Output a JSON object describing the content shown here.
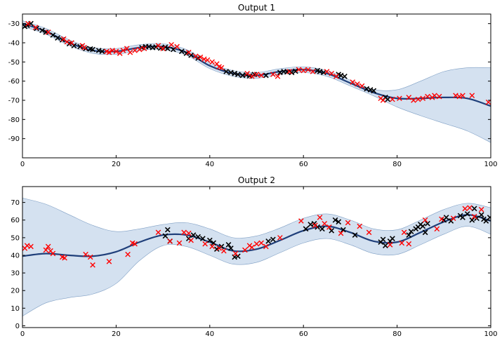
{
  "chart_data": [
    {
      "type": "scatter",
      "title": "Output 1",
      "xlabel": "",
      "ylabel": "",
      "xlim": [
        0,
        100
      ],
      "ylim": [
        -100,
        -25
      ],
      "xticks": [
        0,
        20,
        40,
        60,
        80,
        100
      ],
      "yticks": [
        -90,
        -80,
        -70,
        -60,
        -50,
        -40,
        -30
      ],
      "grid": false,
      "colors": {
        "mean": "#1f3f7a",
        "band": "#c9d9ec",
        "train": "#000000",
        "test": "#ff0000"
      },
      "mean": {
        "x": [
          0,
          5,
          10,
          15,
          20,
          25,
          30,
          35,
          40,
          45,
          50,
          55,
          60,
          65,
          70,
          75,
          80,
          85,
          90,
          95,
          100
        ],
        "y": [
          -30,
          -34,
          -40,
          -44,
          -44.5,
          -42.5,
          -42,
          -45,
          -52,
          -56,
          -57,
          -55,
          -54,
          -56,
          -61,
          -66,
          -69,
          -69,
          -68.5,
          -69,
          -73
        ]
      },
      "band_upper": [
        -28.5,
        -32.5,
        -38.5,
        -42.5,
        -43,
        -41,
        -40.5,
        -43.5,
        -50.5,
        -54.5,
        -55.5,
        -53.5,
        -52.5,
        -54.5,
        -59.5,
        -64.3,
        -64.5,
        -60,
        -55,
        -53,
        -53
      ],
      "band_lower": [
        -31.5,
        -35.5,
        -41.5,
        -45.5,
        -46,
        -44,
        -43.5,
        -46.5,
        -53.5,
        -57.5,
        -58.5,
        -56.5,
        -55.5,
        -57.5,
        -62.5,
        -67.7,
        -73.5,
        -78,
        -82,
        -86,
        -92
      ],
      "train": {
        "x": [
          0.5,
          1.0,
          1.8,
          3.0,
          4.2,
          5.0,
          6.5,
          7.5,
          8.5,
          10.0,
          11.0,
          12.3,
          13.5,
          14.5,
          15.0,
          16.3,
          17.0,
          25.5,
          26.3,
          27.0,
          27.8,
          28.5,
          29.5,
          30.5,
          31.0,
          32.2,
          34.0,
          35.0,
          36.0,
          37.5,
          43.5,
          44.5,
          45.3,
          46.0,
          47.0,
          47.8,
          48.5,
          49.5,
          52.0,
          55.0,
          55.8,
          56.5,
          57.5,
          58.3,
          63.0,
          63.5,
          64.3,
          67.5,
          68.0,
          68.8,
          73.5,
          74.3,
          75.0,
          77.5,
          78.0
        ],
        "y": [
          -31.5,
          -31.0,
          -30.0,
          -32.5,
          -33.5,
          -34.5,
          -36.0,
          -37.5,
          -38.5,
          -40.5,
          -41.5,
          -42.0,
          -43.0,
          -43.2,
          -43.5,
          -44.0,
          -44.5,
          -42.5,
          -42.0,
          -42.0,
          -42.5,
          -42.2,
          -42.8,
          -42.3,
          -43.0,
          -43.5,
          -44.5,
          -45.5,
          -46.5,
          -48.0,
          -55.0,
          -55.5,
          -56.0,
          -56.5,
          -57.0,
          -56.8,
          -57.3,
          -56.5,
          -57.0,
          -55.5,
          -55.0,
          -55.2,
          -55.5,
          -54.8,
          -54.5,
          -55.0,
          -55.5,
          -56.5,
          -57.0,
          -57.5,
          -64.0,
          -64.5,
          -65.0,
          -68.5,
          -69.5
        ]
      },
      "test": {
        "x": [
          1.2,
          2.8,
          5.5,
          8.8,
          9.5,
          10.5,
          12.8,
          13.2,
          18.0,
          18.5,
          19.2,
          20.0,
          20.8,
          21.5,
          22.3,
          23.0,
          24.0,
          25.0,
          26.0,
          29.0,
          30.0,
          31.8,
          33.0,
          35.5,
          37.0,
          38.0,
          38.8,
          39.5,
          40.5,
          41.5,
          42.0,
          42.5,
          48.0,
          49.0,
          50.0,
          51.0,
          53.5,
          54.5,
          57.0,
          59.0,
          60.0,
          61.0,
          62.0,
          65.0,
          66.0,
          67.0,
          70.5,
          71.5,
          72.5,
          76.5,
          77.0,
          79.0,
          80.5,
          82.5,
          83.5,
          84.5,
          85.5,
          86.5,
          87.5,
          88.0,
          89.0,
          92.5,
          93.3,
          94.0,
          96.0,
          99.5
        ],
        "y": [
          -30.0,
          -32.0,
          -34.5,
          -38.0,
          -39.5,
          -40.0,
          -41.5,
          -42.5,
          -44.5,
          -45.0,
          -44.0,
          -44.5,
          -45.5,
          -44.0,
          -43.0,
          -45.0,
          -44.0,
          -43.5,
          -43.0,
          -41.5,
          -43.0,
          -41.0,
          -42.0,
          -45.0,
          -47.0,
          -47.5,
          -48.5,
          -49.0,
          -50.0,
          -51.0,
          -52.5,
          -53.0,
          -56.0,
          -57.5,
          -56.5,
          -57.0,
          -56.5,
          -57.5,
          -55.0,
          -54.0,
          -54.5,
          -54.0,
          -55.0,
          -55.0,
          -56.0,
          -57.5,
          -60.5,
          -61.5,
          -62.5,
          -69.0,
          -70.0,
          -69.5,
          -69.0,
          -68.5,
          -70.0,
          -69.5,
          -69.0,
          -68.0,
          -68.5,
          -67.5,
          -68.0,
          -67.5,
          -68.0,
          -67.5,
          -67.5,
          -71.0
        ]
      }
    },
    {
      "type": "scatter",
      "title": "Output 2",
      "xlabel": "",
      "ylabel": "",
      "xlim": [
        0,
        100
      ],
      "ylim": [
        -1,
        79
      ],
      "xticks": [
        0,
        20,
        40,
        60,
        80,
        100
      ],
      "yticks": [
        0,
        10,
        20,
        30,
        40,
        50,
        60,
        70
      ],
      "grid": false,
      "colors": {
        "mean": "#1f3f7a",
        "band": "#c9d9ec",
        "train": "#000000",
        "test": "#ff0000"
      },
      "mean": {
        "x": [
          0,
          5,
          10,
          15,
          20,
          25,
          30,
          35,
          40,
          45,
          50,
          55,
          60,
          65,
          70,
          75,
          80,
          85,
          90,
          95,
          100
        ],
        "y": [
          39.5,
          41,
          40,
          39.5,
          42,
          47.5,
          51.5,
          51.5,
          47.5,
          42.5,
          43.5,
          48.5,
          54,
          56.5,
          53,
          48,
          47.5,
          53,
          59,
          63,
          59.5
        ]
      },
      "band_upper": [
        72.5,
        69,
        63,
        57,
        53.5,
        55,
        57.5,
        58.5,
        55,
        50,
        51,
        55.5,
        61,
        63.5,
        60,
        55,
        54.5,
        60,
        66,
        69.5,
        67
      ],
      "band_lower": [
        5.5,
        13,
        16,
        18,
        24,
        37,
        45.5,
        45,
        40,
        35,
        36,
        41.5,
        47,
        49.5,
        46,
        41,
        40.5,
        46,
        52,
        56.5,
        52
      ],
      "train": {
        "x": [
          30.5,
          31.0,
          31.5,
          35.5,
          36.5,
          37.5,
          38.5,
          40.0,
          40.8,
          41.5,
          42.5,
          44.0,
          44.5,
          45.3,
          46.0,
          52.5,
          53.5,
          60.5,
          61.5,
          62.3,
          63.0,
          64.0,
          66.0,
          66.8,
          67.5,
          68.5,
          71.0,
          76.5,
          77.0,
          77.5,
          78.5,
          79.0,
          82.5,
          83.0,
          84.0,
          84.5,
          85.0,
          85.5,
          86.0,
          86.5,
          90.0,
          90.5,
          91.5,
          93.5,
          94.0,
          95.0,
          96.0,
          96.5,
          97.0,
          98.0,
          98.5,
          99.0,
          99.8
        ],
        "y": [
          51.0,
          54.5,
          48.0,
          49.5,
          51.5,
          50.5,
          49.5,
          48.5,
          47.0,
          43.5,
          45.0,
          46.0,
          44.0,
          39.0,
          39.5,
          48.0,
          49.0,
          55.0,
          57.5,
          58.0,
          56.0,
          55.0,
          54.0,
          60.0,
          59.0,
          54.5,
          51.5,
          47.5,
          49.0,
          45.5,
          48.0,
          49.5,
          51.5,
          53.5,
          55.0,
          56.0,
          57.5,
          56.5,
          53.0,
          58.0,
          60.0,
          61.5,
          59.5,
          62.5,
          61.5,
          63.5,
          60.0,
          66.5,
          61.0,
          63.0,
          60.5,
          59.5,
          61.5
        ]
      },
      "test": {
        "x": [
          0.5,
          1.0,
          1.8,
          5.0,
          5.5,
          6.0,
          6.5,
          8.5,
          9.0,
          13.5,
          14.5,
          15.0,
          18.5,
          22.5,
          23.5,
          24.0,
          29.0,
          31.5,
          33.5,
          34.5,
          35.5,
          36.0,
          39.0,
          40.5,
          42.0,
          43.0,
          45.5,
          47.5,
          48.5,
          49.0,
          50.0,
          51.0,
          52.0,
          55.0,
          59.5,
          62.5,
          63.5,
          64.5,
          65.5,
          68.0,
          69.5,
          72.0,
          74.0,
          78.5,
          81.0,
          81.5,
          82.5,
          86.0,
          88.5,
          89.5,
          92.0,
          94.5,
          95.5,
          96.5,
          98.0
        ],
        "y": [
          44.0,
          45.5,
          45.0,
          43.0,
          45.0,
          42.5,
          41.0,
          39.0,
          38.5,
          40.5,
          39.0,
          34.5,
          36.5,
          40.5,
          47.0,
          46.5,
          53.0,
          48.0,
          47.0,
          53.0,
          52.5,
          48.5,
          46.5,
          45.0,
          44.0,
          42.5,
          41.0,
          43.0,
          45.5,
          44.5,
          46.5,
          47.0,
          45.0,
          50.0,
          59.5,
          57.0,
          61.5,
          58.0,
          56.0,
          52.5,
          58.5,
          56.5,
          53.0,
          46.0,
          47.0,
          53.0,
          46.5,
          60.0,
          55.0,
          60.5,
          61.0,
          66.5,
          67.0,
          62.0,
          66.0
        ]
      }
    }
  ]
}
